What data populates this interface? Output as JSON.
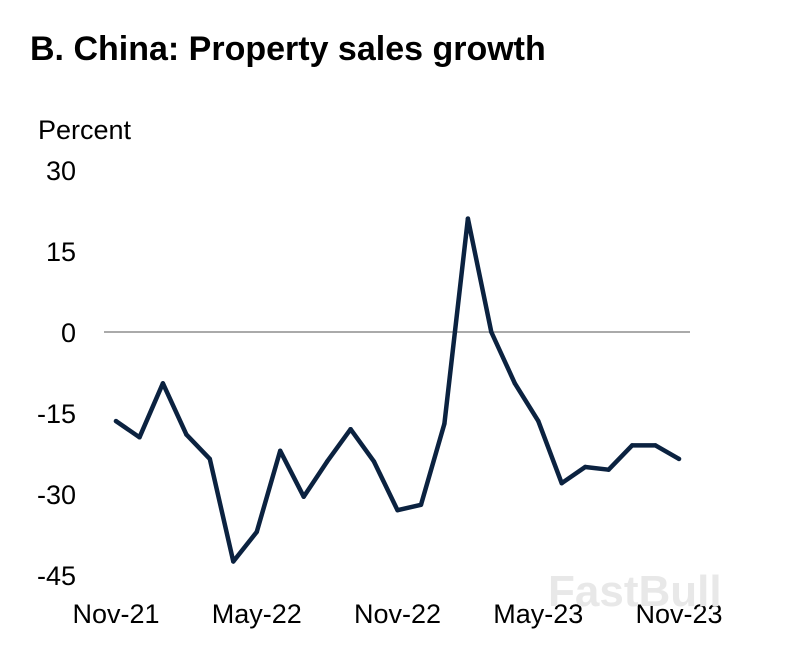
{
  "chart_data": {
    "type": "line",
    "title": "B. China: Property sales growth",
    "ylabel": "Percent",
    "xlabel": "",
    "ylim": [
      -45,
      30
    ],
    "yticks": [
      "30",
      "15",
      "0",
      "-15",
      "-30",
      "-45"
    ],
    "ytick_values": [
      30,
      15,
      0,
      -15,
      -30,
      -45
    ],
    "xtick_labels": [
      "Nov-21",
      "May-22",
      "Nov-22",
      "May-23",
      "Nov-23"
    ],
    "xtick_indices": [
      0,
      6,
      12,
      18,
      24
    ],
    "grid": false,
    "zero_line": true,
    "series": [
      {
        "name": "Property sales growth",
        "color": "#0b2240",
        "x": [
          "Nov-21",
          "Dec-21",
          "Jan-22",
          "Feb-22",
          "Mar-22",
          "Apr-22",
          "May-22",
          "Jun-22",
          "Jul-22",
          "Aug-22",
          "Sep-22",
          "Oct-22",
          "Nov-22",
          "Dec-22",
          "Jan-23",
          "Feb-23",
          "Mar-23",
          "Apr-23",
          "May-23",
          "Jun-23",
          "Jul-23",
          "Aug-23",
          "Sep-23",
          "Oct-23",
          "Nov-23"
        ],
        "values": [
          -16.5,
          -19.5,
          -9.5,
          -19,
          -23.5,
          -42.5,
          -37,
          -22,
          -30.5,
          -24,
          -18,
          -24,
          -33,
          -32,
          -17,
          21,
          0,
          -9.5,
          -16.5,
          -28,
          -25,
          -25.5,
          -21,
          -21,
          -23.5
        ]
      }
    ]
  },
  "watermark": "FastBull",
  "colors": {
    "line": "#0b2240",
    "zero_line": "#555555",
    "background": "#ffffff"
  }
}
